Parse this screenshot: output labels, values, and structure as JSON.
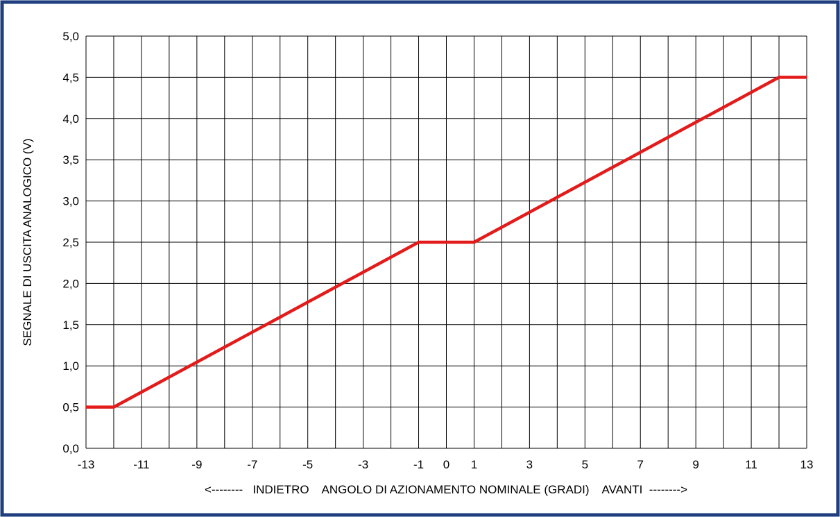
{
  "chart_data": {
    "type": "line",
    "title": "",
    "xlabel": "<--------   INDIETRO    ANGOLO DI AZIONAMENTO NOMINALE (GRADI)    AVANTI  -------->",
    "ylabel": "SEGNALE DI USCITA ANALOGICO (V)",
    "xlim": [
      -13,
      13
    ],
    "ylim": [
      0,
      5
    ],
    "grid": true,
    "x_ticks": [
      -13,
      -11,
      -9,
      -7,
      -5,
      -3,
      -1,
      0,
      1,
      3,
      5,
      7,
      9,
      11,
      13
    ],
    "x_tick_labels": [
      "-13",
      "-11",
      "-9",
      "-7",
      "-5",
      "-3",
      "-1",
      "0",
      "1",
      "3",
      "5",
      "7",
      "9",
      "11",
      "13"
    ],
    "y_ticks": [
      0,
      0.5,
      1,
      1.5,
      2,
      2.5,
      3,
      3.5,
      4,
      4.5,
      5
    ],
    "y_tick_labels": [
      "0,0",
      "0,5",
      "1,0",
      "1,5",
      "2,0",
      "2,5",
      "3,0",
      "3,5",
      "4,0",
      "4,5",
      "5,0"
    ],
    "series": [
      {
        "color": "#e31b1b",
        "x": [
          -13,
          -12,
          -1,
          1,
          12,
          13
        ],
        "y": [
          0.5,
          0.5,
          2.5,
          2.5,
          4.5,
          4.5
        ]
      }
    ],
    "frame_color": "#1f3f7f"
  }
}
